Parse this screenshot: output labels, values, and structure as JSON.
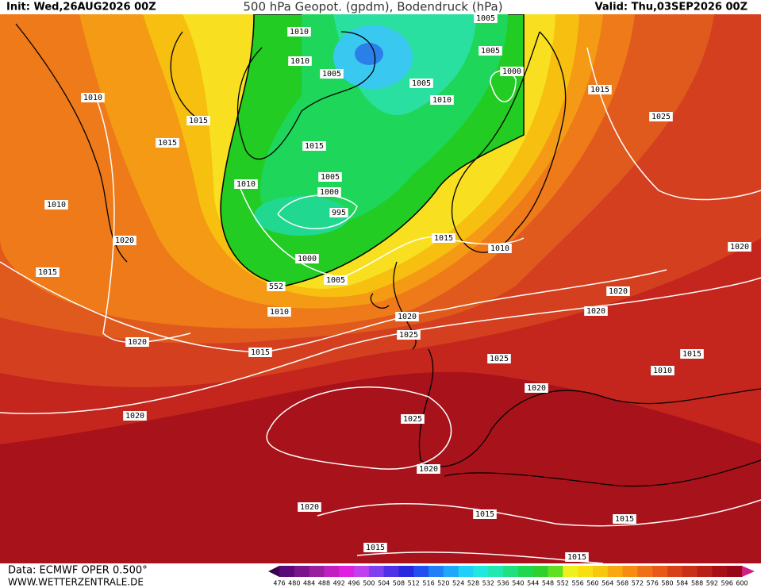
{
  "header": {
    "init": "Init: Wed,26AUG2026 00Z",
    "title": "500 hPa Geopot. (gpdm), Bodendruck (hPa)",
    "valid": "Valid: Thu,03SEP2026 00Z"
  },
  "map": {
    "labels": [
      "1010",
      "1010",
      "1005",
      "1005",
      "1000",
      "1005",
      "1005",
      "1010",
      "1015",
      "1010",
      "1015",
      "1015",
      "1025",
      "1015",
      "1005",
      "1000",
      "1010",
      "995",
      "1010",
      "1020",
      "1015",
      "1010",
      "1020",
      "1000",
      "1015",
      "1005",
      "552",
      "1020",
      "1010",
      "1020",
      "1020",
      "1025",
      "1020",
      "1015",
      "1025",
      "1015",
      "1010",
      "1020",
      "1020",
      "1025",
      "1020",
      "1020",
      "1015",
      "1015",
      "1015",
      "1015"
    ]
  },
  "legend": {
    "values": [
      476,
      480,
      484,
      488,
      492,
      496,
      500,
      504,
      508,
      512,
      516,
      520,
      524,
      528,
      532,
      536,
      540,
      544,
      548,
      552,
      556,
      560,
      564,
      568,
      572,
      576,
      580,
      584,
      588,
      592,
      596,
      600
    ],
    "colors": [
      "#3c0050",
      "#5a0a78",
      "#7a148c",
      "#9a1ea0",
      "#c020c0",
      "#e020e0",
      "#c040f0",
      "#8040f0",
      "#5030e8",
      "#2828e0",
      "#2050f0",
      "#2080f8",
      "#20a8f8",
      "#20d0f8",
      "#20e8e0",
      "#20e8b0",
      "#20e080",
      "#20d850",
      "#30d030",
      "#60e020",
      "#f0f020",
      "#f8e010",
      "#f8c810",
      "#f8a810",
      "#f88c10",
      "#f07018",
      "#e85818",
      "#d84018",
      "#c83018",
      "#b82018",
      "#a81018",
      "#980818",
      "#d02080"
    ]
  },
  "footer": {
    "data": "Data: ECMWF OPER 0.500°",
    "site": "WWW.WETTERZENTRALE.DE"
  }
}
